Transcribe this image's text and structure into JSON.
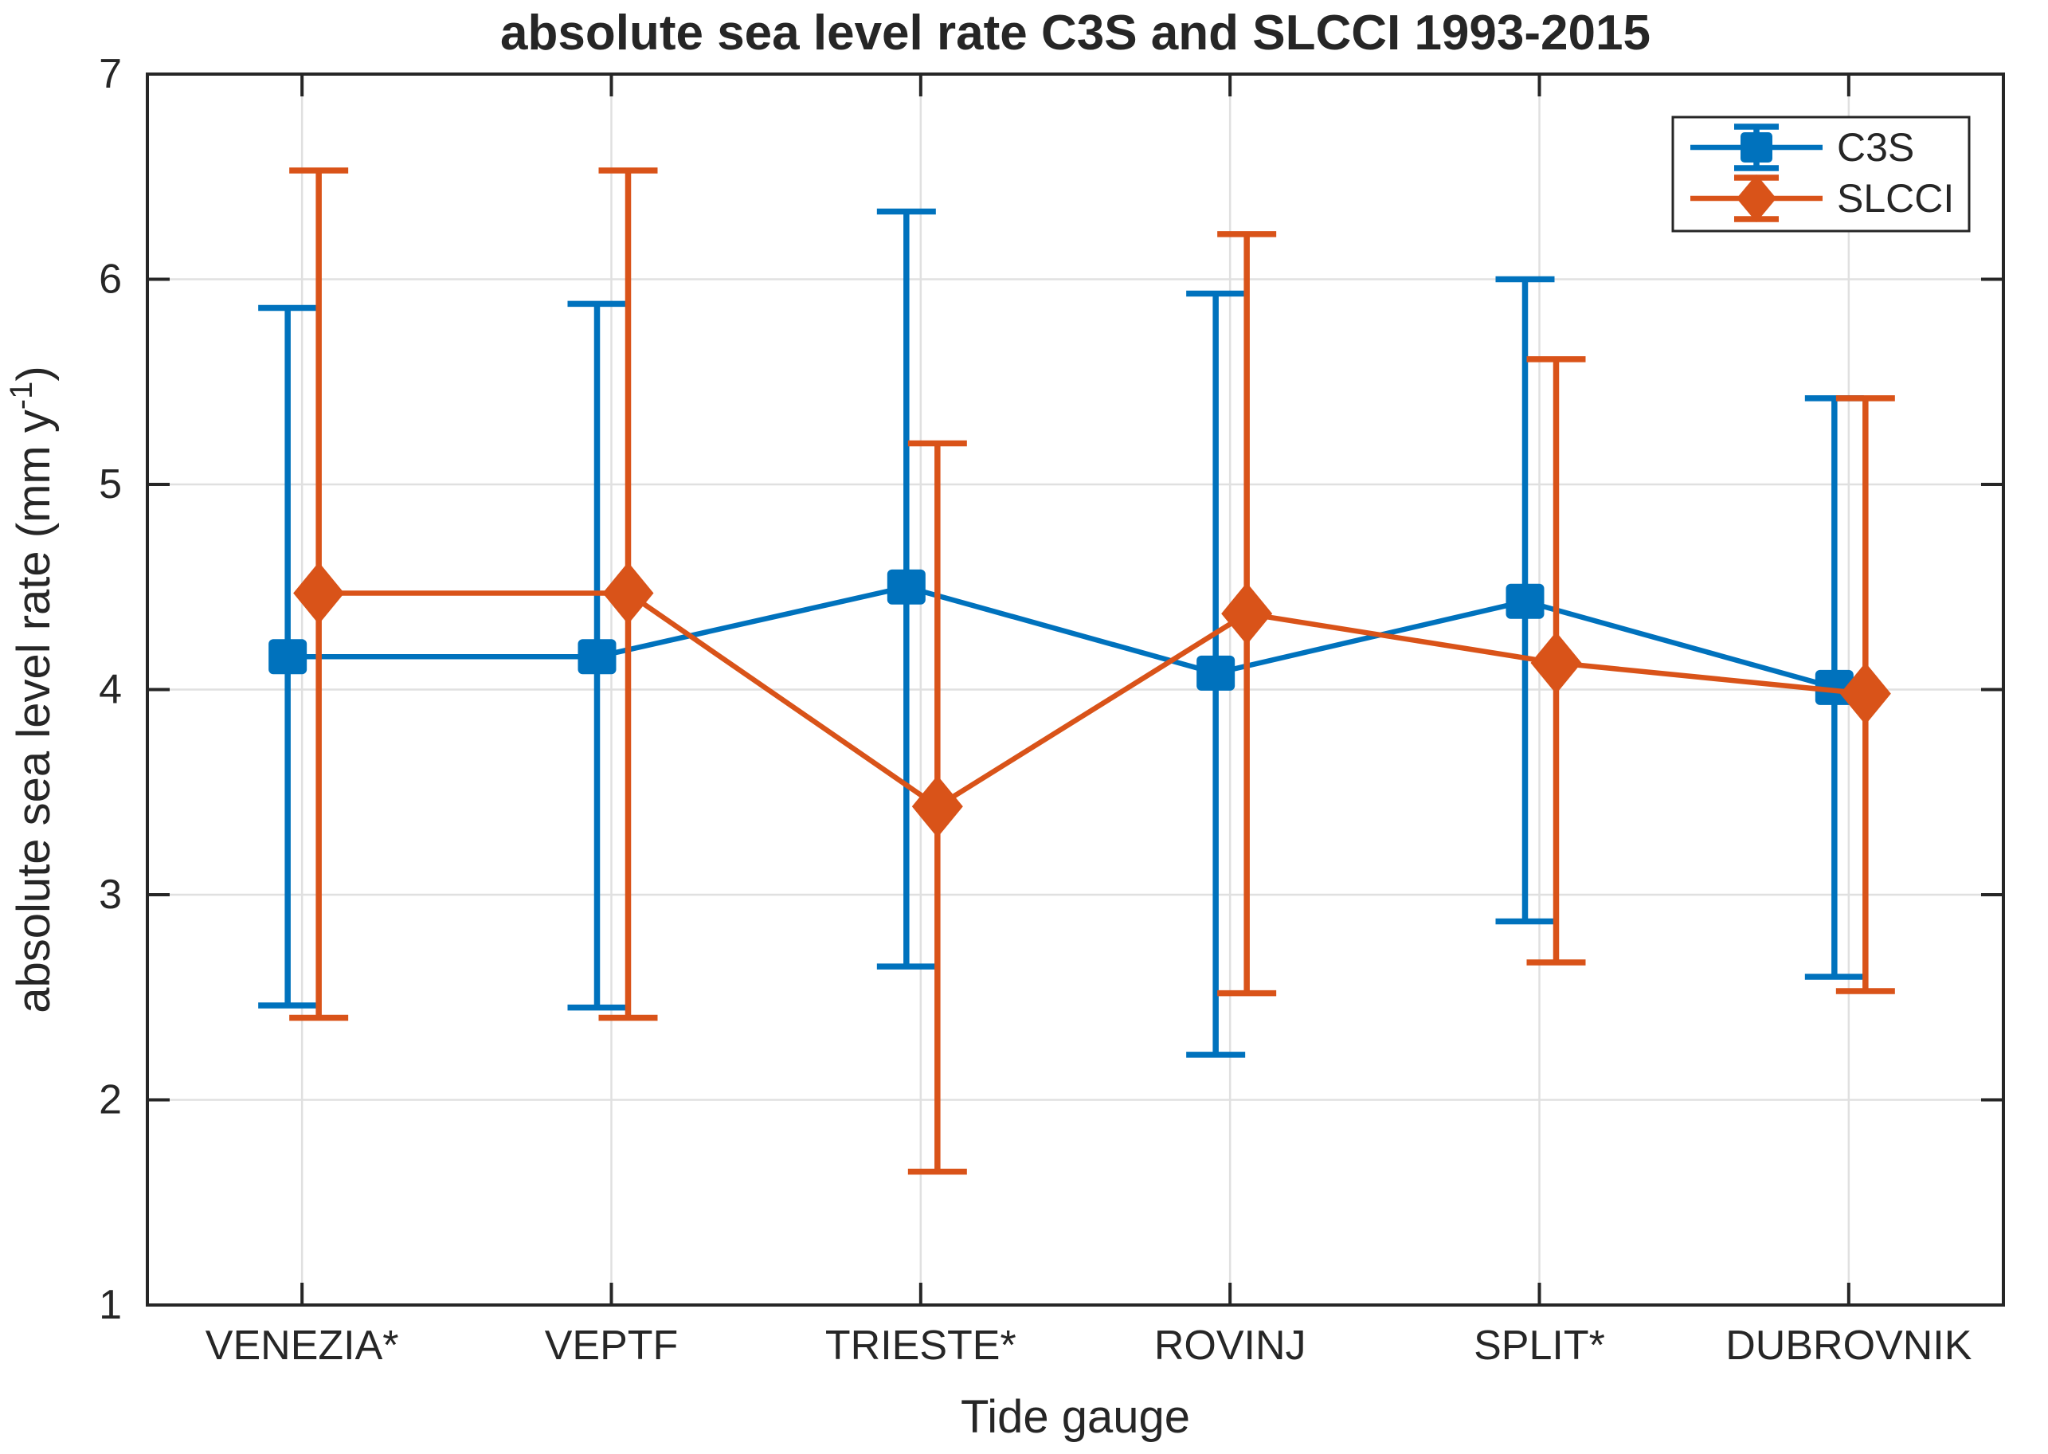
{
  "chart_data": {
    "type": "line",
    "title": "absolute sea level rate C3S and SLCCI 1993-2015",
    "xlabel": "Tide gauge",
    "ylabel": {
      "prefix": "absolute sea level rate (mm y",
      "sup": "-1",
      "suffix": ")"
    },
    "ylim": [
      1,
      7
    ],
    "yticks": [
      1,
      2,
      3,
      4,
      5,
      6,
      7
    ],
    "grid": true,
    "legend_position": "top-right",
    "categories": [
      "VENEZIA*",
      "VEPTF",
      "TRIESTE*",
      "ROVINJ",
      "SPLIT*",
      "DUBROVNIK"
    ],
    "series": [
      {
        "name": "C3S",
        "marker": "square",
        "color": "#0072BD",
        "values": [
          4.16,
          4.16,
          4.5,
          4.08,
          4.43,
          4.01
        ],
        "err_low": [
          2.46,
          2.45,
          2.65,
          2.22,
          2.87,
          2.6
        ],
        "err_high": [
          5.86,
          5.88,
          6.33,
          5.93,
          6.0,
          5.42
        ]
      },
      {
        "name": "SLCCI",
        "marker": "diamond",
        "color": "#D95319",
        "values": [
          4.47,
          4.47,
          3.43,
          4.37,
          4.13,
          3.98
        ],
        "err_low": [
          2.4,
          2.4,
          1.65,
          2.52,
          2.67,
          2.53
        ],
        "err_high": [
          6.53,
          6.53,
          5.2,
          6.22,
          5.61,
          5.42
        ]
      }
    ],
    "axis_color": "#262626",
    "grid_color": "#E0E0E0",
    "background": "#FFFFFF"
  }
}
